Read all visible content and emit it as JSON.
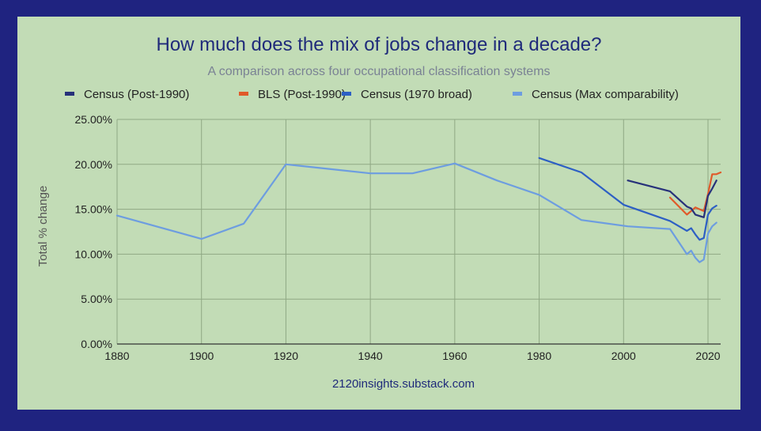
{
  "chart_data": {
    "type": "line",
    "title": "How much does the mix of jobs change in a decade?",
    "subtitle": "A comparison across four occupational classification systems",
    "ylabel": "Total % change",
    "xlabel": "",
    "source": "2120insights.substack.com",
    "xlim": [
      1880,
      2023
    ],
    "ylim": [
      0,
      25
    ],
    "x_ticks": [
      1880,
      1900,
      1920,
      1940,
      1960,
      1980,
      2000,
      2020
    ],
    "y_ticks": [
      "0.00%",
      "5.00%",
      "10.00%",
      "15.00%",
      "20.00%",
      "25.00%"
    ],
    "y_tick_values": [
      0,
      5,
      10,
      15,
      20,
      25
    ],
    "grid": true,
    "legend_position": "top",
    "series": [
      {
        "name": "Census (Post-1990)",
        "color": "#27317a",
        "points": [
          [
            2001,
            18.2
          ],
          [
            2011,
            17.0
          ],
          [
            2015,
            15.3
          ],
          [
            2016,
            15.1
          ],
          [
            2017,
            14.4
          ],
          [
            2019,
            14.1
          ],
          [
            2020,
            16.5
          ],
          [
            2021,
            17.3
          ],
          [
            2022,
            18.2
          ]
        ]
      },
      {
        "name": "BLS (Post-1990)",
        "color": "#e05a2a",
        "points": [
          [
            2011,
            16.3
          ],
          [
            2015,
            14.4
          ],
          [
            2016,
            14.8
          ],
          [
            2017,
            15.2
          ],
          [
            2019,
            14.8
          ],
          [
            2020,
            16.7
          ],
          [
            2021,
            18.9
          ],
          [
            2022,
            18.9
          ],
          [
            2023,
            19.1
          ]
        ]
      },
      {
        "name": "Census (1970 broad)",
        "color": "#2d5fc4",
        "points": [
          [
            1980,
            20.7
          ],
          [
            1990,
            19.1
          ],
          [
            2000,
            15.5
          ],
          [
            2011,
            13.7
          ],
          [
            2015,
            12.6
          ],
          [
            2016,
            12.9
          ],
          [
            2017,
            12.2
          ],
          [
            2018,
            11.6
          ],
          [
            2019,
            11.8
          ],
          [
            2020,
            14.4
          ],
          [
            2021,
            15.1
          ],
          [
            2022,
            15.4
          ]
        ]
      },
      {
        "name": "Census (Max comparability)",
        "color": "#6d9de0",
        "points": [
          [
            1880,
            14.3
          ],
          [
            1900,
            11.7
          ],
          [
            1910,
            13.4
          ],
          [
            1920,
            20.0
          ],
          [
            1930,
            19.5
          ],
          [
            1940,
            19.0
          ],
          [
            1950,
            19.0
          ],
          [
            1960,
            20.1
          ],
          [
            1970,
            18.2
          ],
          [
            1980,
            16.6
          ],
          [
            1990,
            13.8
          ],
          [
            2001,
            13.1
          ],
          [
            2011,
            12.8
          ],
          [
            2015,
            10.0
          ],
          [
            2016,
            10.4
          ],
          [
            2017,
            9.6
          ],
          [
            2018,
            9.1
          ],
          [
            2019,
            9.4
          ],
          [
            2020,
            12.3
          ],
          [
            2021,
            13.1
          ],
          [
            2022,
            13.5
          ]
        ]
      }
    ]
  }
}
